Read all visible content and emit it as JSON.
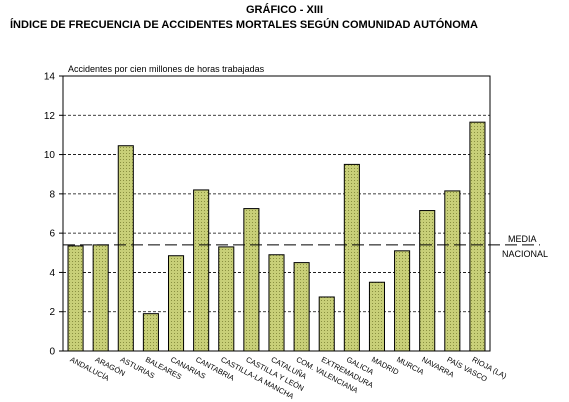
{
  "chart_data": {
    "type": "bar",
    "title": "GRÁFICO - XIII",
    "subtitle": "ÍNDICE DE FRECUENCIA DE ACCIDENTES MORTALES SEGÚN COMUNIDAD AUTÓNOMA",
    "ylabel": "Accidentes por cien millones de horas trabajadas",
    "ylim": [
      0,
      14
    ],
    "yticks": [
      0,
      2,
      4,
      6,
      8,
      10,
      12,
      14
    ],
    "grid": true,
    "categories": [
      "ANDALUCÍA",
      "ARAGÓN",
      "ASTURIAS",
      "BALEARES",
      "CANARIAS",
      "CANTABRIA",
      "CASTILLA-LA MANCHA",
      "CASTILLA Y LEÓN",
      "CATALUÑA",
      "COM. VALENCIANA",
      "EXTREMADURA",
      "GALICIA",
      "MADRID",
      "MURCIA",
      "NAVARRA",
      "PAÍS VASCO",
      "RIOJA (LA)"
    ],
    "values": [
      5.35,
      5.4,
      10.45,
      1.9,
      4.85,
      8.2,
      5.3,
      7.25,
      4.9,
      4.5,
      2.75,
      9.5,
      3.5,
      5.1,
      7.15,
      8.15,
      11.65
    ],
    "reference_line": {
      "value": 5.4,
      "label_line1": "MEDIA",
      "label_line2": "NACIONAL"
    },
    "colors": {
      "bar_fill": "#c8cf78",
      "bar_stroke": "#000000",
      "grid": "#000000"
    }
  }
}
